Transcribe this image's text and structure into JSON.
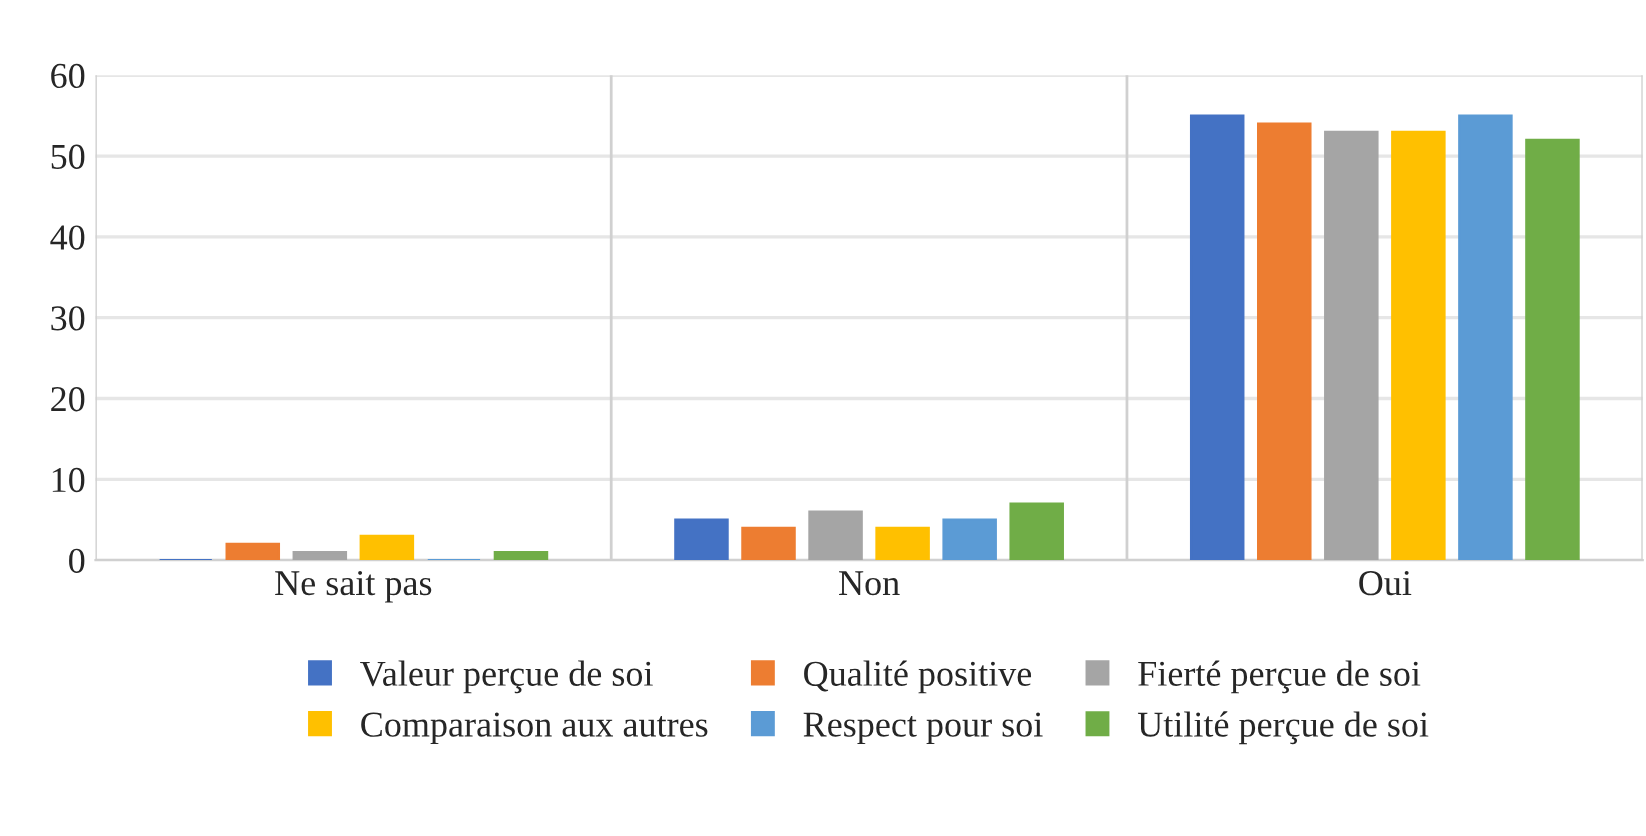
{
  "chart_data": {
    "type": "bar",
    "categories": [
      "Ne sait pas",
      "Non",
      "Oui"
    ],
    "series": [
      {
        "name": "Valeur perçue de soi",
        "color": "#4472c4",
        "values": [
          0,
          5,
          55
        ]
      },
      {
        "name": "Qualité positive",
        "color": "#ed7d31",
        "values": [
          2,
          4,
          54
        ]
      },
      {
        "name": "Fierté perçue de soi",
        "color": "#a5a5a5",
        "values": [
          1,
          6,
          53
        ]
      },
      {
        "name": "Comparaison aux autres",
        "color": "#ffc000",
        "values": [
          3,
          4,
          53
        ]
      },
      {
        "name": "Respect pour soi",
        "color": "#5b9bd5",
        "values": [
          0,
          5,
          55
        ]
      },
      {
        "name": "Utilité perçue de soi",
        "color": "#70ad47",
        "values": [
          1,
          7,
          52
        ]
      }
    ],
    "ylim": [
      0,
      60
    ],
    "yticks": [
      0,
      10,
      20,
      30,
      40,
      50,
      60
    ],
    "grid": true,
    "legend": "bottom"
  }
}
